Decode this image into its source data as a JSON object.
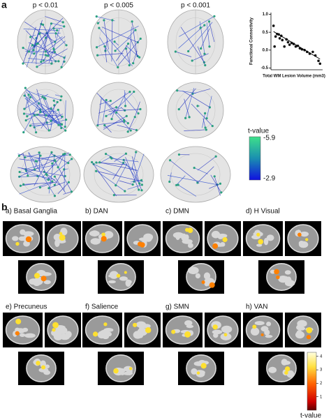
{
  "panel_a": {
    "label": "a",
    "thresholds": [
      "p < 0.01",
      "p < 0.005",
      "p < 0.001"
    ],
    "colorbar": {
      "title": "t-value",
      "top": "-5.9",
      "bottom": "-2.9"
    }
  },
  "chart_data": {
    "type": "scatter",
    "ylabel": "Functional Connectivity",
    "xlabel": "Total WM Lesion Volume (mm3)",
    "x": [
      0.5,
      0.7,
      0.9,
      1.2,
      1.5,
      1.7,
      2.0,
      2.2,
      2.6,
      3.0,
      3.3,
      3.6,
      4.0,
      4.4,
      4.8,
      5.2,
      5.6,
      6.0,
      6.5,
      7.0,
      7.5,
      8.1,
      8.6,
      9.2,
      9.5
    ],
    "y": [
      0.68,
      0.1,
      0.38,
      0.45,
      0.44,
      0.33,
      0.4,
      0.28,
      0.1,
      0.3,
      0.22,
      0.15,
      0.2,
      0.17,
      0.1,
      0.12,
      0.05,
      0.02,
      0.0,
      -0.05,
      -0.1,
      -0.05,
      -0.15,
      -0.3,
      -0.38
    ],
    "color": "#111111",
    "trendline": {
      "x": [
        0.5,
        9.5
      ],
      "y": [
        0.52,
        -0.25
      ]
    },
    "xlim": [
      0,
      10
    ],
    "ylim": [
      -0.55,
      1.05
    ],
    "yticks": [
      {
        "value": 1.0,
        "label": "1.0"
      },
      0.5,
      {
        "value": 0.0,
        "label": "0.0"
      },
      -0.5
    ]
  },
  "panel_b": {
    "label": "b",
    "networks": [
      "a) Basal Ganglia",
      "b) DAN",
      "c) DMN",
      "d) H Visual",
      "e) Precuneus",
      "f) Salience",
      "g) SMN",
      "h) VAN"
    ],
    "colorbar": {
      "title": "t-value",
      "ticks": [
        1,
        2,
        3,
        4
      ],
      "range": [
        0,
        4.3
      ]
    }
  }
}
